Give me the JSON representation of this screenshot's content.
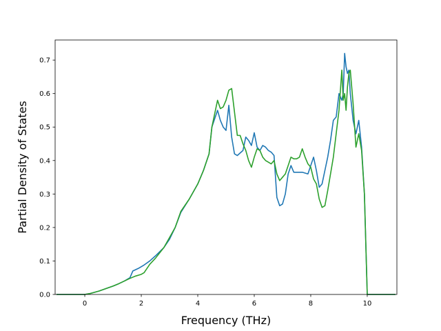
{
  "chart_data": {
    "type": "line",
    "title": "",
    "xlabel": "Frequency (THz)",
    "ylabel": "Partial Density of States",
    "xlim": [
      -1.05,
      11.05
    ],
    "ylim": [
      0.0,
      0.76
    ],
    "xticks": [
      0,
      2,
      4,
      6,
      8,
      10
    ],
    "yticks": [
      0.0,
      0.1,
      0.2,
      0.3,
      0.4,
      0.5,
      0.6,
      0.7
    ],
    "xtick_labels": [
      "0",
      "2",
      "4",
      "6",
      "8",
      "10"
    ],
    "ytick_labels": [
      "0.0",
      "0.1",
      "0.2",
      "0.3",
      "0.4",
      "0.5",
      "0.6",
      "0.7"
    ],
    "grid": false,
    "legend": "none",
    "series": [
      {
        "color": "#1f77b4",
        "x": [
          -1.0,
          0.0,
          0.2,
          0.5,
          0.8,
          1.0,
          1.2,
          1.4,
          1.6,
          1.7,
          1.9,
          2.1,
          2.3,
          2.5,
          2.8,
          3.0,
          3.2,
          3.4,
          3.7,
          4.0,
          4.2,
          4.4,
          4.5,
          4.6,
          4.7,
          4.8,
          4.9,
          5.0,
          5.1,
          5.2,
          5.3,
          5.4,
          5.6,
          5.7,
          5.8,
          5.9,
          6.0,
          6.1,
          6.2,
          6.3,
          6.4,
          6.5,
          6.6,
          6.7,
          6.8,
          6.9,
          7.0,
          7.1,
          7.2,
          7.3,
          7.4,
          7.5,
          7.7,
          7.9,
          8.1,
          8.2,
          8.3,
          8.4,
          8.5,
          8.6,
          8.7,
          8.8,
          8.9,
          9.0,
          9.1,
          9.15,
          9.2,
          9.25,
          9.3,
          9.35,
          9.4,
          9.5,
          9.6,
          9.7,
          9.8,
          9.9,
          10.0,
          10.3,
          11.0
        ],
        "y": [
          0.0,
          0.0,
          0.003,
          0.01,
          0.019,
          0.025,
          0.032,
          0.04,
          0.05,
          0.07,
          0.078,
          0.088,
          0.1,
          0.115,
          0.14,
          0.165,
          0.2,
          0.245,
          0.285,
          0.33,
          0.37,
          0.42,
          0.5,
          0.525,
          0.55,
          0.52,
          0.5,
          0.49,
          0.565,
          0.47,
          0.42,
          0.415,
          0.43,
          0.47,
          0.46,
          0.445,
          0.483,
          0.44,
          0.43,
          0.445,
          0.44,
          0.43,
          0.425,
          0.415,
          0.29,
          0.265,
          0.27,
          0.3,
          0.36,
          0.385,
          0.365,
          0.365,
          0.365,
          0.36,
          0.41,
          0.37,
          0.32,
          0.33,
          0.37,
          0.41,
          0.46,
          0.52,
          0.53,
          0.6,
          0.58,
          0.6,
          0.72,
          0.68,
          0.66,
          0.67,
          0.6,
          0.52,
          0.48,
          0.52,
          0.44,
          0.3,
          0.0,
          0.0,
          0.0
        ]
      },
      {
        "color": "#2ca02c",
        "x": [
          -1.0,
          0.0,
          0.2,
          0.5,
          0.8,
          1.0,
          1.2,
          1.4,
          1.6,
          1.8,
          2.0,
          2.1,
          2.3,
          2.5,
          2.8,
          3.0,
          3.2,
          3.4,
          3.7,
          4.0,
          4.2,
          4.4,
          4.5,
          4.6,
          4.7,
          4.8,
          4.9,
          5.0,
          5.1,
          5.2,
          5.4,
          5.5,
          5.6,
          5.7,
          5.8,
          5.9,
          6.0,
          6.1,
          6.2,
          6.3,
          6.4,
          6.5,
          6.6,
          6.7,
          6.8,
          6.9,
          7.0,
          7.1,
          7.2,
          7.3,
          7.4,
          7.5,
          7.6,
          7.7,
          7.8,
          7.9,
          8.0,
          8.1,
          8.2,
          8.3,
          8.4,
          8.5,
          8.6,
          8.7,
          8.8,
          8.9,
          9.0,
          9.1,
          9.15,
          9.2,
          9.25,
          9.3,
          9.35,
          9.4,
          9.5,
          9.6,
          9.7,
          9.8,
          9.9,
          10.0,
          10.3,
          11.0
        ],
        "y": [
          0.0,
          0.0,
          0.003,
          0.01,
          0.019,
          0.025,
          0.032,
          0.04,
          0.048,
          0.055,
          0.06,
          0.065,
          0.09,
          0.108,
          0.14,
          0.17,
          0.2,
          0.248,
          0.285,
          0.33,
          0.37,
          0.42,
          0.5,
          0.54,
          0.58,
          0.555,
          0.56,
          0.58,
          0.61,
          0.615,
          0.475,
          0.475,
          0.45,
          0.43,
          0.4,
          0.38,
          0.41,
          0.435,
          0.43,
          0.41,
          0.4,
          0.395,
          0.39,
          0.4,
          0.36,
          0.34,
          0.35,
          0.36,
          0.385,
          0.41,
          0.405,
          0.405,
          0.41,
          0.435,
          0.41,
          0.39,
          0.38,
          0.345,
          0.33,
          0.285,
          0.26,
          0.265,
          0.31,
          0.36,
          0.41,
          0.48,
          0.55,
          0.67,
          0.58,
          0.6,
          0.55,
          0.62,
          0.66,
          0.67,
          0.57,
          0.44,
          0.48,
          0.43,
          0.3,
          0.0,
          0.0,
          0.0
        ]
      }
    ]
  }
}
